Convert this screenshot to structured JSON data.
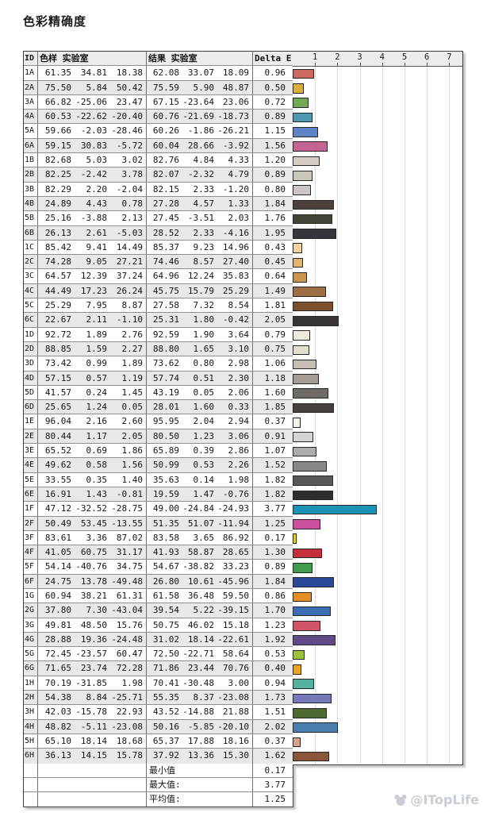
{
  "page": {
    "title": "色彩精确度",
    "watermark_text": "@ITopLife"
  },
  "table": {
    "headers": {
      "id": "ID",
      "sample": "色样 实验室",
      "result": "结果 实验室",
      "delta": "Delta E"
    },
    "rows": [
      {
        "id": "1A",
        "sample": [
          61.35,
          34.81,
          18.38
        ],
        "result": [
          62.08,
          33.07,
          18.09
        ],
        "delta_e": 0.96,
        "color": "#cd6a60"
      },
      {
        "id": "2A",
        "sample": [
          75.5,
          5.84,
          50.42
        ],
        "result": [
          75.59,
          5.9,
          48.87
        ],
        "delta_e": 0.5,
        "color": "#d9af3e"
      },
      {
        "id": "3A",
        "sample": [
          66.82,
          -25.06,
          23.47
        ],
        "result": [
          67.15,
          -23.64,
          23.06
        ],
        "delta_e": 0.72,
        "color": "#71a955"
      },
      {
        "id": "4A",
        "sample": [
          60.53,
          -22.62,
          -20.4
        ],
        "result": [
          60.76,
          -21.69,
          -18.73
        ],
        "delta_e": 0.89,
        "color": "#5097b2"
      },
      {
        "id": "5A",
        "sample": [
          59.66,
          -2.03,
          -28.46
        ],
        "result": [
          60.26,
          -1.86,
          -26.21
        ],
        "delta_e": 1.15,
        "color": "#5c83c3"
      },
      {
        "id": "6A",
        "sample": [
          59.15,
          30.83,
          -5.72
        ],
        "result": [
          60.04,
          28.66,
          -3.92
        ],
        "delta_e": 1.56,
        "color": "#c46292"
      },
      {
        "id": "1B",
        "sample": [
          82.68,
          5.03,
          3.02
        ],
        "result": [
          82.76,
          4.84,
          4.33
        ],
        "delta_e": 1.2,
        "color": "#d5cdc4"
      },
      {
        "id": "2B",
        "sample": [
          82.25,
          -2.42,
          3.78
        ],
        "result": [
          82.07,
          -2.32,
          4.79
        ],
        "delta_e": 0.89,
        "color": "#c9c8bb"
      },
      {
        "id": "3B",
        "sample": [
          82.29,
          2.2,
          -2.04
        ],
        "result": [
          82.15,
          2.33,
          -1.2
        ],
        "delta_e": 0.8,
        "color": "#ccc3cb"
      },
      {
        "id": "4B",
        "sample": [
          24.89,
          4.43,
          0.78
        ],
        "result": [
          27.28,
          4.57,
          1.33
        ],
        "delta_e": 1.84,
        "color": "#4c413c"
      },
      {
        "id": "5B",
        "sample": [
          25.16,
          -3.88,
          2.13
        ],
        "result": [
          27.45,
          -3.51,
          2.03
        ],
        "delta_e": 1.76,
        "color": "#3f4637"
      },
      {
        "id": "6B",
        "sample": [
          26.13,
          2.61,
          -5.03
        ],
        "result": [
          28.52,
          2.33,
          -4.16
        ],
        "delta_e": 1.95,
        "color": "#35363c"
      },
      {
        "id": "1C",
        "sample": [
          85.42,
          9.41,
          14.49
        ],
        "result": [
          85.37,
          9.23,
          14.96
        ],
        "delta_e": 0.43,
        "color": "#f4d3a2"
      },
      {
        "id": "2C",
        "sample": [
          74.28,
          9.05,
          27.21
        ],
        "result": [
          74.46,
          8.57,
          27.4
        ],
        "delta_e": 0.45,
        "color": "#e2b376"
      },
      {
        "id": "3C",
        "sample": [
          64.57,
          12.39,
          37.24
        ],
        "result": [
          64.96,
          12.24,
          35.83
        ],
        "delta_e": 0.64,
        "color": "#c9964e"
      },
      {
        "id": "4C",
        "sample": [
          44.49,
          17.23,
          26.24
        ],
        "result": [
          45.75,
          15.79,
          25.29
        ],
        "delta_e": 1.49,
        "color": "#9c6e41"
      },
      {
        "id": "5C",
        "sample": [
          25.29,
          7.95,
          8.87
        ],
        "result": [
          27.58,
          7.32,
          8.54
        ],
        "delta_e": 1.81,
        "color": "#7c4f2d"
      },
      {
        "id": "6C",
        "sample": [
          22.67,
          2.11,
          -1.1
        ],
        "result": [
          25.31,
          1.8,
          -0.42
        ],
        "delta_e": 2.05,
        "color": "#393435"
      },
      {
        "id": "1D",
        "sample": [
          92.72,
          1.89,
          2.76
        ],
        "result": [
          92.59,
          1.9,
          3.64
        ],
        "delta_e": 0.79,
        "color": "#efe9de"
      },
      {
        "id": "2D",
        "sample": [
          88.85,
          1.59,
          2.27
        ],
        "result": [
          88.8,
          1.65,
          3.1
        ],
        "delta_e": 0.75,
        "color": "#e4decf"
      },
      {
        "id": "3D",
        "sample": [
          73.42,
          0.99,
          1.89
        ],
        "result": [
          73.62,
          0.8,
          2.98
        ],
        "delta_e": 1.06,
        "color": "#c5bfb3"
      },
      {
        "id": "4D",
        "sample": [
          57.15,
          0.57,
          1.19
        ],
        "result": [
          57.74,
          0.51,
          2.3
        ],
        "delta_e": 1.18,
        "color": "#a39d95"
      },
      {
        "id": "5D",
        "sample": [
          41.57,
          0.24,
          1.45
        ],
        "result": [
          43.19,
          0.05,
          2.06
        ],
        "delta_e": 1.6,
        "color": "#6f6a65"
      },
      {
        "id": "6D",
        "sample": [
          25.65,
          1.24,
          0.05
        ],
        "result": [
          28.01,
          1.6,
          0.33
        ],
        "delta_e": 1.85,
        "color": "#46403c"
      },
      {
        "id": "1E",
        "sample": [
          96.04,
          2.16,
          2.6
        ],
        "result": [
          95.95,
          2.04,
          2.94
        ],
        "delta_e": 0.37,
        "color": "#f4f1e9"
      },
      {
        "id": "2E",
        "sample": [
          80.44,
          1.17,
          2.05
        ],
        "result": [
          80.5,
          1.23,
          3.06
        ],
        "delta_e": 0.91,
        "color": "#d4d4d2"
      },
      {
        "id": "3E",
        "sample": [
          65.52,
          0.69,
          1.86
        ],
        "result": [
          65.89,
          0.39,
          2.86
        ],
        "delta_e": 1.07,
        "color": "#acacaa"
      },
      {
        "id": "4E",
        "sample": [
          49.62,
          0.58,
          1.56
        ],
        "result": [
          50.99,
          0.53,
          2.26
        ],
        "delta_e": 1.52,
        "color": "#888888"
      },
      {
        "id": "5E",
        "sample": [
          33.55,
          0.35,
          1.4
        ],
        "result": [
          35.63,
          0.14,
          1.98
        ],
        "delta_e": 1.82,
        "color": "#58585a"
      },
      {
        "id": "6E",
        "sample": [
          16.91,
          1.43,
          -0.81
        ],
        "result": [
          19.59,
          1.47,
          -0.76
        ],
        "delta_e": 1.82,
        "color": "#2e2e30"
      },
      {
        "id": "1F",
        "sample": [
          47.12,
          -32.52,
          -28.75
        ],
        "result": [
          49.0,
          -24.84,
          -24.93
        ],
        "delta_e": 3.77,
        "color": "#1a93b5"
      },
      {
        "id": "2F",
        "sample": [
          50.49,
          53.45,
          -13.55
        ],
        "result": [
          51.35,
          51.07,
          -11.94
        ],
        "delta_e": 1.25,
        "color": "#ca4f9f"
      },
      {
        "id": "3F",
        "sample": [
          83.61,
          3.36,
          87.02
        ],
        "result": [
          83.58,
          3.65,
          86.92
        ],
        "delta_e": 0.17,
        "color": "#e7cb28"
      },
      {
        "id": "4F",
        "sample": [
          41.05,
          60.75,
          31.17
        ],
        "result": [
          41.93,
          58.87,
          28.65
        ],
        "delta_e": 1.3,
        "color": "#c32f3c"
      },
      {
        "id": "5F",
        "sample": [
          54.14,
          -40.76,
          34.75
        ],
        "result": [
          54.67,
          -38.82,
          33.23
        ],
        "delta_e": 0.89,
        "color": "#3f9d4b"
      },
      {
        "id": "6F",
        "sample": [
          24.75,
          13.78,
          -49.48
        ],
        "result": [
          26.8,
          10.61,
          -45.96
        ],
        "delta_e": 1.84,
        "color": "#2a4a99"
      },
      {
        "id": "1G",
        "sample": [
          60.94,
          38.21,
          61.31
        ],
        "result": [
          61.58,
          36.48,
          59.5
        ],
        "delta_e": 0.86,
        "color": "#e88e26"
      },
      {
        "id": "2G",
        "sample": [
          37.8,
          7.3,
          -43.04
        ],
        "result": [
          39.54,
          5.22,
          -39.15
        ],
        "delta_e": 1.7,
        "color": "#3c6cb4"
      },
      {
        "id": "3G",
        "sample": [
          49.81,
          48.5,
          15.76
        ],
        "result": [
          50.75,
          46.02,
          15.18
        ],
        "delta_e": 1.23,
        "color": "#d15468"
      },
      {
        "id": "4G",
        "sample": [
          28.88,
          19.36,
          -24.48
        ],
        "result": [
          31.02,
          18.14,
          -22.61
        ],
        "delta_e": 1.92,
        "color": "#5e4a86"
      },
      {
        "id": "5G",
        "sample": [
          72.45,
          -23.57,
          60.47
        ],
        "result": [
          72.5,
          -22.71,
          58.64
        ],
        "delta_e": 0.53,
        "color": "#9dc13b"
      },
      {
        "id": "6G",
        "sample": [
          71.65,
          23.74,
          72.28
        ],
        "result": [
          71.86,
          23.44,
          70.76
        ],
        "delta_e": 0.4,
        "color": "#eca428"
      },
      {
        "id": "1H",
        "sample": [
          70.19,
          -31.85,
          1.98
        ],
        "result": [
          70.41,
          -30.48,
          3.0
        ],
        "delta_e": 0.94,
        "color": "#55b2a0"
      },
      {
        "id": "2H",
        "sample": [
          54.38,
          8.84,
          -25.71
        ],
        "result": [
          55.35,
          8.37,
          -23.08
        ],
        "delta_e": 1.73,
        "color": "#7779bc"
      },
      {
        "id": "3H",
        "sample": [
          42.03,
          -15.78,
          22.93
        ],
        "result": [
          43.52,
          -14.88,
          21.88
        ],
        "delta_e": 1.51,
        "color": "#4e6a32"
      },
      {
        "id": "4H",
        "sample": [
          48.82,
          -5.11,
          -23.08
        ],
        "result": [
          50.16,
          -5.85,
          -20.1
        ],
        "delta_e": 2.02,
        "color": "#4a7ead"
      },
      {
        "id": "5H",
        "sample": [
          65.1,
          18.14,
          18.68
        ],
        "result": [
          65.37,
          17.88,
          18.16
        ],
        "delta_e": 0.37,
        "color": "#d9a28c"
      },
      {
        "id": "6H",
        "sample": [
          36.13,
          14.15,
          15.78
        ],
        "result": [
          37.92,
          13.36,
          15.3
        ],
        "delta_e": 1.62,
        "color": "#8a5538"
      }
    ],
    "summary": [
      {
        "label": "最小值",
        "value": 0.17
      },
      {
        "label": "最大值:",
        "value": 3.77
      },
      {
        "label": "平均值:",
        "value": 1.25
      }
    ]
  },
  "chart_data": {
    "type": "bar",
    "orientation": "horizontal",
    "title": "Delta E",
    "categories": [
      "1A",
      "2A",
      "3A",
      "4A",
      "5A",
      "6A",
      "1B",
      "2B",
      "3B",
      "4B",
      "5B",
      "6B",
      "1C",
      "2C",
      "3C",
      "4C",
      "5C",
      "6C",
      "1D",
      "2D",
      "3D",
      "4D",
      "5D",
      "6D",
      "1E",
      "2E",
      "3E",
      "4E",
      "5E",
      "6E",
      "1F",
      "2F",
      "3F",
      "4F",
      "5F",
      "6F",
      "1G",
      "2G",
      "3G",
      "4G",
      "5G",
      "6G",
      "1H",
      "2H",
      "3H",
      "4H",
      "5H",
      "6H"
    ],
    "values": [
      0.96,
      0.5,
      0.72,
      0.89,
      1.15,
      1.56,
      1.2,
      0.89,
      0.8,
      1.84,
      1.76,
      1.95,
      0.43,
      0.45,
      0.64,
      1.49,
      1.81,
      2.05,
      0.79,
      0.75,
      1.06,
      1.18,
      1.6,
      1.85,
      0.37,
      0.91,
      1.07,
      1.52,
      1.82,
      1.82,
      3.77,
      1.25,
      0.17,
      1.3,
      0.89,
      1.84,
      0.86,
      1.7,
      1.23,
      1.92,
      0.53,
      0.4,
      0.94,
      1.73,
      1.51,
      2.02,
      0.37,
      1.62
    ],
    "bar_colors": [
      "#cd6a60",
      "#d9af3e",
      "#71a955",
      "#5097b2",
      "#5c83c3",
      "#c46292",
      "#d5cdc4",
      "#c9c8bb",
      "#ccc3cb",
      "#4c413c",
      "#3f4637",
      "#35363c",
      "#f4d3a2",
      "#e2b376",
      "#c9964e",
      "#9c6e41",
      "#7c4f2d",
      "#393435",
      "#efe9de",
      "#e4decf",
      "#c5bfb3",
      "#a39d95",
      "#6f6a65",
      "#46403c",
      "#f4f1e9",
      "#d4d4d2",
      "#acacaa",
      "#888888",
      "#58585a",
      "#2e2e30",
      "#1a93b5",
      "#ca4f9f",
      "#e7cb28",
      "#c32f3c",
      "#3f9d4b",
      "#2a4a99",
      "#e88e26",
      "#3c6cb4",
      "#d15468",
      "#5e4a86",
      "#9dc13b",
      "#eca428",
      "#55b2a0",
      "#7779bc",
      "#4e6a32",
      "#4a7ead",
      "#d9a28c",
      "#8a5538"
    ],
    "axis_ticks": [
      1,
      2,
      3,
      4,
      5,
      6,
      7
    ],
    "xlim": [
      0,
      7.6
    ],
    "gridlines": true,
    "legend": "none"
  }
}
